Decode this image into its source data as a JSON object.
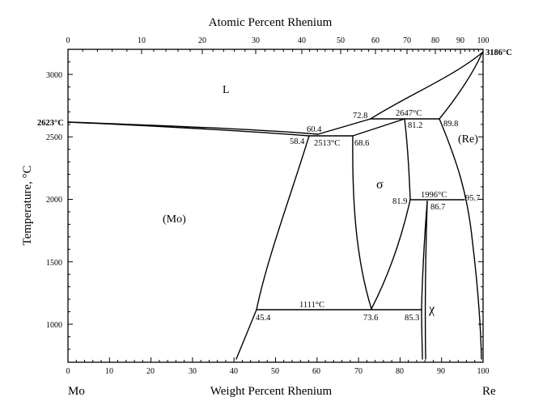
{
  "top_axis": {
    "title": "Atomic Percent Rhenium",
    "labels": [
      "0",
      "10",
      "20",
      "30",
      "40",
      "50",
      "60",
      "70",
      "80",
      "90",
      "100"
    ]
  },
  "bottom_axis": {
    "title": "Weight Percent Rhenium",
    "labels": [
      "0",
      "10",
      "20",
      "30",
      "40",
      "50",
      "60",
      "70",
      "80",
      "90",
      "100"
    ],
    "left_element": "Mo",
    "right_element": "Re"
  },
  "left_axis": {
    "title": "Temperature, °C",
    "labels": [
      "1000",
      "1500",
      "2000",
      "2500",
      "3000"
    ]
  },
  "phases": {
    "liquid": "L",
    "mo_solid": "(Mo)",
    "re_solid": "(Re)",
    "sigma": "σ",
    "chi": "χ"
  },
  "annotations": {
    "mo_melting": "2623°C",
    "re_melting": "3186°C",
    "peritectic_sigma": "2647°C",
    "eutectic": "2513°C",
    "sigma_chi": "1996°C",
    "eutectoid": "1111°C",
    "c_72_8": "72.8",
    "c_81_2": "81.2",
    "c_89_8": "89.8",
    "c_60_4": "60.4",
    "c_58_4": "58.4",
    "c_68_6": "68.6",
    "c_81_9": "81.9",
    "c_86_7": "86.7",
    "c_95_7": "95.7",
    "c_45_4": "45.4",
    "c_73_6": "73.6",
    "c_85_3": "85.3"
  },
  "chart_data": {
    "type": "phase-diagram",
    "x_range_weight_percent": [
      0,
      100
    ],
    "y_range_celsius": [
      700,
      3250
    ],
    "invariants": [
      {
        "temperature": 2623,
        "composition": 0
      },
      {
        "temperature": 3186,
        "composition": 100
      },
      {
        "temperature": 2647,
        "compositions": [
          72.8,
          81.2,
          89.8
        ]
      },
      {
        "temperature": 2513,
        "compositions": [
          58.4,
          60.4,
          68.6
        ]
      },
      {
        "temperature": 1996,
        "compositions": [
          81.9,
          86.7,
          95.7
        ]
      },
      {
        "temperature": 1111,
        "compositions": [
          45.4,
          73.6,
          85.3
        ]
      }
    ]
  }
}
